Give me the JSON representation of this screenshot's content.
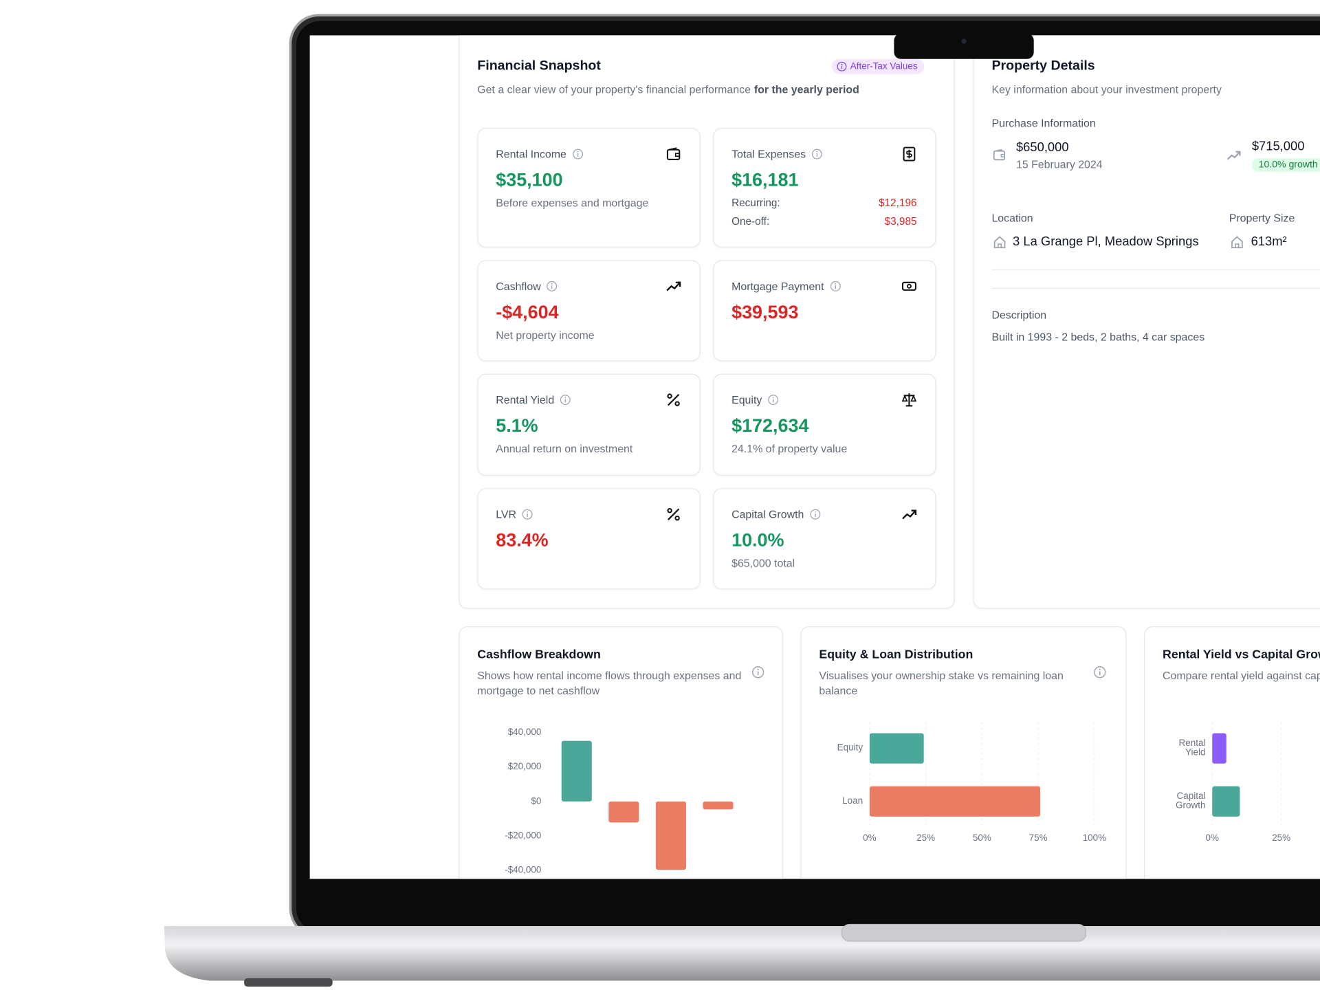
{
  "snapshot": {
    "title": "Financial Snapshot",
    "badge": "After-Tax Values",
    "subtitle": "Get a clear view of your property's financial performance",
    "subtitle_bold": "for the yearly period",
    "cards": [
      {
        "label": "Rental Income",
        "value": "$35,100",
        "color": "#16965f",
        "note": "Before expenses and mortgage"
      },
      {
        "label": "Total Expenses",
        "value": "$16,181",
        "color": "#16965f",
        "rows": [
          {
            "label": "Recurring:",
            "value": "$12,196"
          },
          {
            "label": "One-off:",
            "value": "$3,985"
          }
        ]
      },
      {
        "label": "Cashflow",
        "value": "-$4,604",
        "color": "#dc2626",
        "note": "Net property income"
      },
      {
        "label": "Mortgage Payment",
        "value": "$39,593",
        "color": "#dc2626"
      },
      {
        "label": "Rental Yield",
        "value": "5.1%",
        "color": "#16965f",
        "note": "Annual return on investment"
      },
      {
        "label": "Equity",
        "value": "$172,634",
        "color": "#16965f",
        "note": "24.1% of property value"
      },
      {
        "label": "LVR",
        "value": "83.4%",
        "color": "#dc2626"
      },
      {
        "label": "Capital Growth",
        "value": "10.0%",
        "color": "#16965f",
        "note": "$65,000 total"
      }
    ]
  },
  "property": {
    "title": "Property Details",
    "subtitle": "Key information about your investment property",
    "purchase_heading": "Purchase Information",
    "purchase_price": "$650,000",
    "purchase_date": "15 February 2024",
    "current_value": "$715,000",
    "growth": "10.0% growth",
    "location_heading": "Location",
    "location": "3 La Grange Pl, Meadow Springs",
    "size_heading": "Property Size",
    "size": "613m²",
    "description_heading": "Description",
    "description": "Built in 1993 - 2 beds, 2 baths, 4 car spaces"
  },
  "chart_data": [
    {
      "type": "bar",
      "title": "Cashflow Breakdown",
      "subtitle": "Shows how rental income flows through expenses and mortgage to net cashflow",
      "categories": [
        null,
        null,
        null,
        null
      ],
      "values": [
        35100,
        -12196,
        -39593,
        -4604
      ],
      "positive_color": "#4aa89a",
      "negative_color": "#e97c63",
      "ylim": [
        -40000,
        40000
      ],
      "yticks": [
        {
          "value": 40000,
          "label": "$40,000"
        },
        {
          "value": 20000,
          "label": "$20,000"
        },
        {
          "value": 0,
          "label": "$0"
        },
        {
          "value": -20000,
          "label": "-$20,000"
        },
        {
          "value": -40000,
          "label": "-$40,000"
        }
      ],
      "grid": false
    },
    {
      "type": "barh",
      "title": "Equity & Loan Distribution",
      "subtitle": "Visualises your ownership stake vs remaining loan balance",
      "categories": [
        "Equity",
        "Loan"
      ],
      "values": [
        24.1,
        75.9
      ],
      "colors": [
        "#4aa89a",
        "#e97c63"
      ],
      "xlim": [
        0,
        100
      ],
      "xticks": [
        {
          "value": 0,
          "label": "0%"
        },
        {
          "value": 25,
          "label": "25%"
        },
        {
          "value": 50,
          "label": "50%"
        },
        {
          "value": 75,
          "label": "75%"
        },
        {
          "value": 100,
          "label": "100%"
        }
      ],
      "grid": true
    },
    {
      "type": "barh",
      "title": "Rental Yield vs Capital Growth",
      "subtitle": "Compare rental yield against capital growth performance",
      "categories": [
        "Rental Yield",
        "Capital Growth"
      ],
      "values": [
        5.1,
        10.0
      ],
      "colors": [
        "#8b5cf6",
        "#4aa89a"
      ],
      "xlim": [
        0,
        100
      ],
      "xticks": [
        {
          "value": 0,
          "label": "0%"
        },
        {
          "value": 25,
          "label": "25%"
        }
      ],
      "grid": true
    }
  ]
}
